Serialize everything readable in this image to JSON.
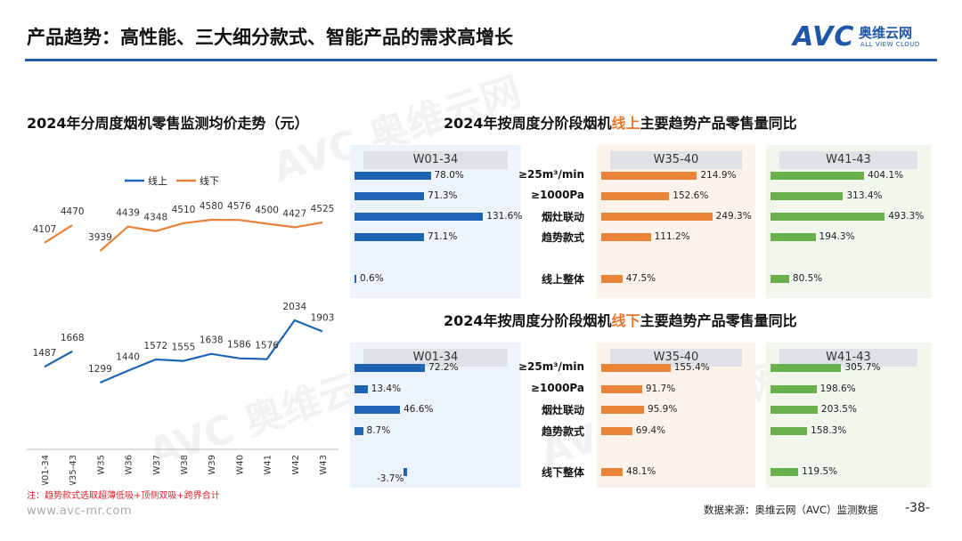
{
  "header": {
    "title": "产品趋势：高性能、三大细分款式、智能产品的需求高增长",
    "logo_main": "AVC",
    "logo_cn": "奥维云网",
    "logo_en": "ALL VIEW CLOUD"
  },
  "line_section": {
    "title": "2024年分周度烟机零售监测均价走势（元）",
    "legend": [
      "线上",
      "线下"
    ]
  },
  "online_section": {
    "title_pre": "2024年按周度分阶段烟机",
    "title_hl": "线上",
    "title_post": "主要趋势产品零售量同比"
  },
  "offline_section": {
    "title_pre": "2024年按周度分阶段烟机",
    "title_hl": "线下",
    "title_post": "主要趋势产品零售量同比"
  },
  "row_labels": {
    "online": [
      "≥25m³/min",
      "≥1000Pa",
      "烟灶联动",
      "趋势款式",
      "线上整体"
    ],
    "offline": [
      "≥25m³/min",
      "≥1000Pa",
      "烟灶联动",
      "趋势款式",
      "线下整体"
    ]
  },
  "chart_data": [
    {
      "type": "line",
      "title": "2024年分周度烟机零售监测均价走势（元）",
      "x": [
        "W01-34",
        "W35-43",
        "W35",
        "W36",
        "W37",
        "W38",
        "W39",
        "W40",
        "W41",
        "W42",
        "W43"
      ],
      "series": [
        {
          "name": "线上",
          "values": [
            1487,
            1668,
            1299,
            1440,
            1572,
            1555,
            1638,
            1586,
            1576,
            2034,
            1903
          ]
        },
        {
          "name": "线下",
          "values": [
            4107,
            4470,
            3939,
            4439,
            4348,
            4510,
            4580,
            4576,
            4500,
            4427,
            4525
          ]
        }
      ],
      "legend_position": "top-center",
      "colors": {
        "线上": "#1f64b4",
        "线下": "#e8813a"
      }
    },
    {
      "type": "bar",
      "title": "2024年按周度分阶段烟机线上主要趋势产品零售量同比",
      "categories": [
        "≥25m³/min",
        "≥1000Pa",
        "烟灶联动",
        "趋势款式",
        "线上整体"
      ],
      "unit": "%",
      "series": [
        {
          "name": "W01-34",
          "color": "#1f64b4",
          "values": [
            78.0,
            71.3,
            131.6,
            71.1,
            0.6
          ]
        },
        {
          "name": "W35-40",
          "color": "#ec8437",
          "values": [
            214.9,
            152.6,
            249.3,
            111.2,
            47.5
          ]
        },
        {
          "name": "W41-43",
          "color": "#6ab04c",
          "values": [
            404.1,
            313.4,
            493.3,
            194.3,
            80.5
          ]
        }
      ]
    },
    {
      "type": "bar",
      "title": "2024年按周度分阶段烟机线下主要趋势产品零售量同比",
      "categories": [
        "≥25m³/min",
        "≥1000Pa",
        "烟灶联动",
        "趋势款式",
        "线下整体"
      ],
      "unit": "%",
      "series": [
        {
          "name": "W01-34",
          "color": "#1f64b4",
          "values": [
            72.2,
            13.4,
            46.6,
            8.7,
            -3.7
          ]
        },
        {
          "name": "W35-40",
          "color": "#ec8437",
          "values": [
            155.4,
            91.7,
            95.9,
            69.4,
            48.1
          ]
        },
        {
          "name": "W41-43",
          "color": "#6ab04c",
          "values": [
            305.7,
            198.6,
            203.5,
            158.3,
            119.5
          ]
        }
      ]
    }
  ],
  "footer": {
    "note": "注：趋势款式选取超薄低吸+顶侧双吸+跨界合计",
    "website": "www.avc-mr.com",
    "source": "数据来源：奥维云网（AVC）监测数据",
    "page": "-38-"
  }
}
